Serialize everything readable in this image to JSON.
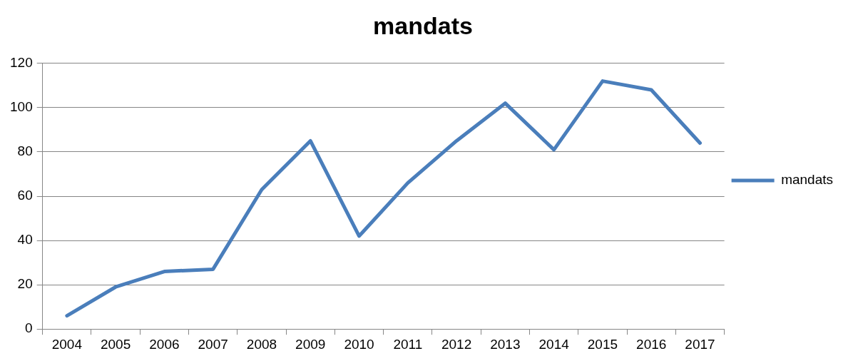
{
  "chart_data": {
    "type": "line",
    "title": "mandats",
    "categories": [
      "2004",
      "2005",
      "2006",
      "2007",
      "2008",
      "2009",
      "2010",
      "2011",
      "2012",
      "2013",
      "2014",
      "2015",
      "2016",
      "2017"
    ],
    "series": [
      {
        "name": "mandats",
        "color": "#4a7ebb",
        "values": [
          6,
          19,
          26,
          27,
          63,
          85,
          42,
          66,
          85,
          102,
          81,
          112,
          108,
          84
        ]
      }
    ],
    "ylim": [
      0,
      120
    ],
    "yticks": [
      0,
      20,
      40,
      60,
      80,
      100,
      120
    ],
    "grid": "y",
    "legend": "right",
    "marker": "none"
  }
}
